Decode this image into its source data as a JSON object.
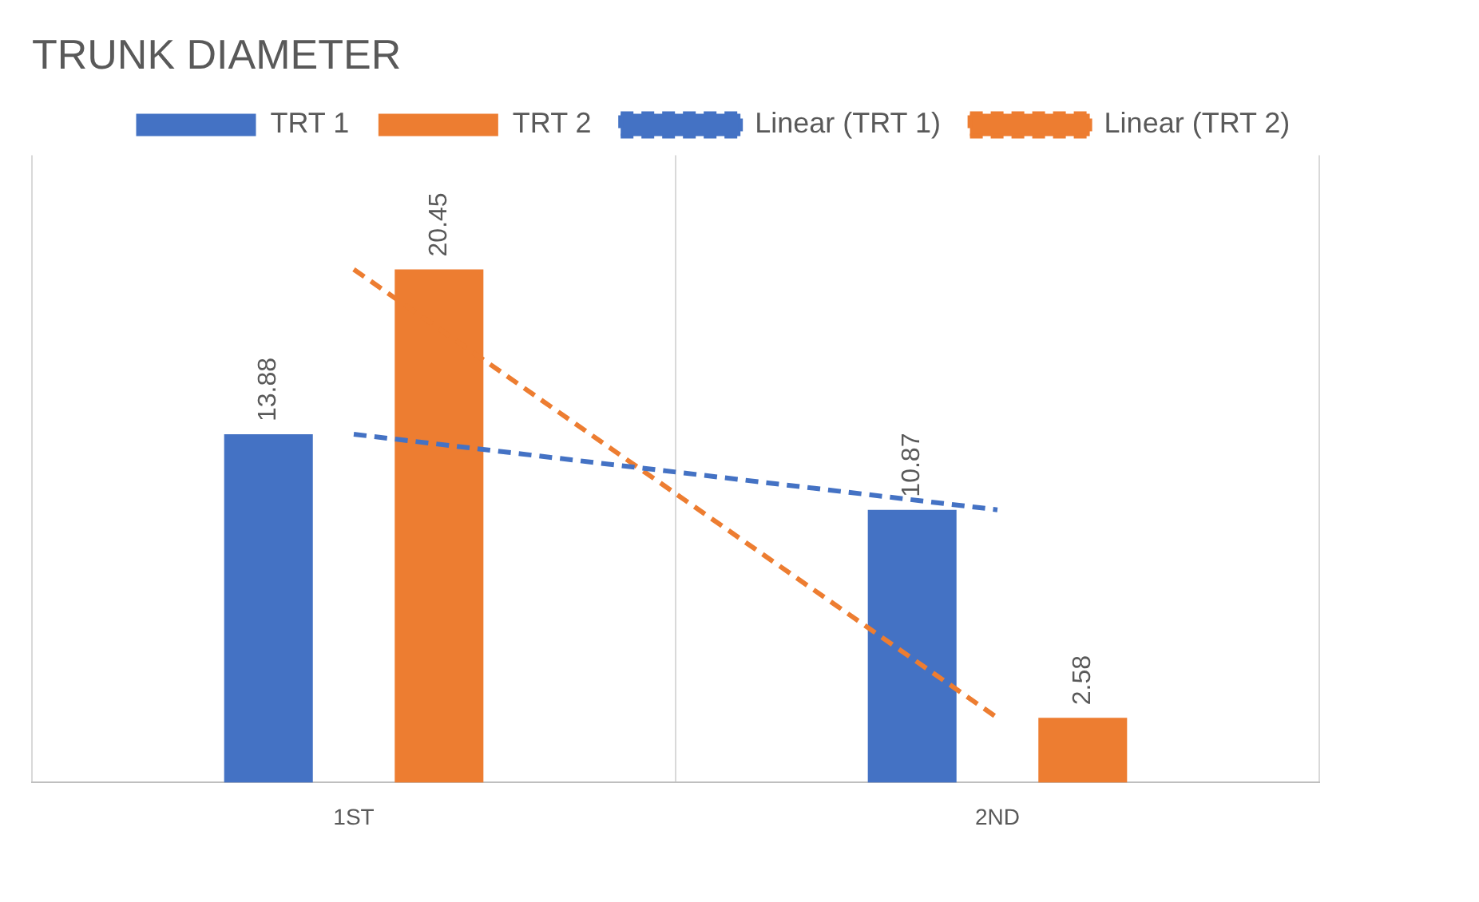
{
  "chart_data": {
    "type": "bar",
    "title": "TRUNK DIAMETER",
    "categories": [
      "1ST",
      "2ND"
    ],
    "series": [
      {
        "name": "TRT 1",
        "color": "#4472c4",
        "values": [
          13.88,
          10.87
        ],
        "value_labels": [
          "13.88",
          "10.87"
        ]
      },
      {
        "name": "TRT 2",
        "color": "#ed7d31",
        "values": [
          20.45,
          2.58
        ],
        "value_labels": [
          "20.45",
          "2.58"
        ]
      },
      {
        "name": "Linear (TRT 1)",
        "type": "line",
        "color": "#4472c4",
        "x": [
          "1ST",
          "2ND"
        ],
        "values": [
          13.88,
          10.87
        ],
        "line_style": "dashed"
      },
      {
        "name": "Linear (TRT 2)",
        "type": "line",
        "color": "#ed7d31",
        "x": [
          "1ST",
          "2ND"
        ],
        "values": [
          20.45,
          2.58
        ],
        "line_style": "dashed"
      }
    ],
    "ylim": [
      0,
      25
    ],
    "grid": "x",
    "legend": "top right",
    "marker": "none",
    "tick_labels": "x"
  }
}
